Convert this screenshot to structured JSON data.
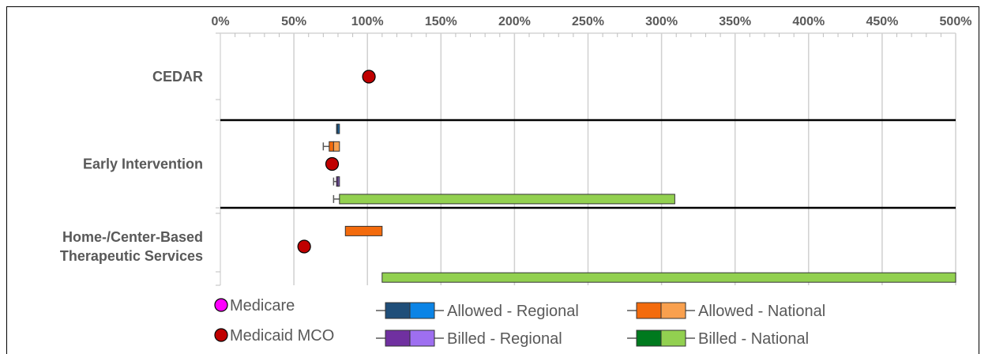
{
  "chart_data": {
    "type": "boxplot",
    "x_axis": {
      "min": 0,
      "max": 500,
      "step": 50,
      "tick_labels": [
        "0%",
        "50%",
        "100%",
        "150%",
        "200%",
        "250%",
        "300%",
        "350%",
        "400%",
        "450%",
        "500%"
      ],
      "position": "top",
      "grid": true
    },
    "categories": [
      "CEDAR",
      "Early Intervention",
      "Home-/Center-Based\nTherapeutic Services"
    ],
    "category_labels": [
      [
        "CEDAR"
      ],
      [
        "Early Intervention"
      ],
      [
        "Home-/Center-Based",
        "Therapeutic Services"
      ]
    ],
    "series": [
      {
        "name": "Medicaid MCO",
        "kind": "point",
        "color": "#c00000",
        "points": [
          {
            "category": 0,
            "row": 2,
            "value": 101
          },
          {
            "category": 1,
            "row": 2,
            "value": 76
          },
          {
            "category": 2,
            "row": 2,
            "value": 57
          }
        ]
      },
      {
        "name": "Allowed - Regional",
        "kind": "box",
        "colors": [
          "#1f4e79",
          "#0b84e6"
        ],
        "boxes": [
          {
            "category": 1,
            "row": 0,
            "whisker_low": 79,
            "q1": 79,
            "median": 80,
            "q3": 81,
            "whisker_high": 81
          }
        ]
      },
      {
        "name": "Allowed - National",
        "kind": "box",
        "colors": [
          "#f36b0d",
          "#f9a04e"
        ],
        "boxes": [
          {
            "category": 1,
            "row": 1,
            "whisker_low": 70,
            "q1": 74,
            "median": 77,
            "q3": 81,
            "whisker_high": 81
          },
          {
            "category": 2,
            "row": 1,
            "whisker_low": 85,
            "q1": 85,
            "median": 110,
            "q3": 110,
            "whisker_high": 110
          }
        ]
      },
      {
        "name": "Billed - Regional",
        "kind": "box",
        "colors": [
          "#7030a0",
          "#9e6ff0"
        ],
        "boxes": [
          {
            "category": 1,
            "row": 3,
            "whisker_low": 77,
            "q1": 79,
            "median": 80,
            "q3": 81,
            "whisker_high": 81
          }
        ]
      },
      {
        "name": "Billed - National",
        "kind": "box",
        "colors": [
          "#007a1e",
          "#92d050"
        ],
        "boxes": [
          {
            "category": 1,
            "row": 4,
            "whisker_low": 77,
            "q1": 81,
            "median": 81,
            "q3": 309,
            "whisker_high": 309
          },
          {
            "category": 2,
            "row": 4,
            "whisker_low": 110,
            "q1": 110,
            "median": 110,
            "q3": 500,
            "whisker_high": 500
          }
        ]
      },
      {
        "name": "Medicare",
        "kind": "point",
        "color": "#ff00ff",
        "points": []
      }
    ],
    "legend": {
      "placement": "bottom",
      "entries": [
        {
          "label": "Medicare",
          "kind": "marker",
          "color": "#ff00ff"
        },
        {
          "label": "Medicaid MCO",
          "kind": "marker",
          "color": "#c00000"
        },
        {
          "label": "Allowed - Regional",
          "kind": "box",
          "colors": [
            "#1f4e79",
            "#0b84e6"
          ]
        },
        {
          "label": "Billed - Regional",
          "kind": "box",
          "colors": [
            "#7030a0",
            "#9e6ff0"
          ]
        },
        {
          "label": "Allowed - National",
          "kind": "box",
          "colors": [
            "#f36b0d",
            "#f9a04e"
          ]
        },
        {
          "label": "Billed - National",
          "kind": "box",
          "colors": [
            "#007a1e",
            "#92d050"
          ]
        }
      ]
    }
  }
}
